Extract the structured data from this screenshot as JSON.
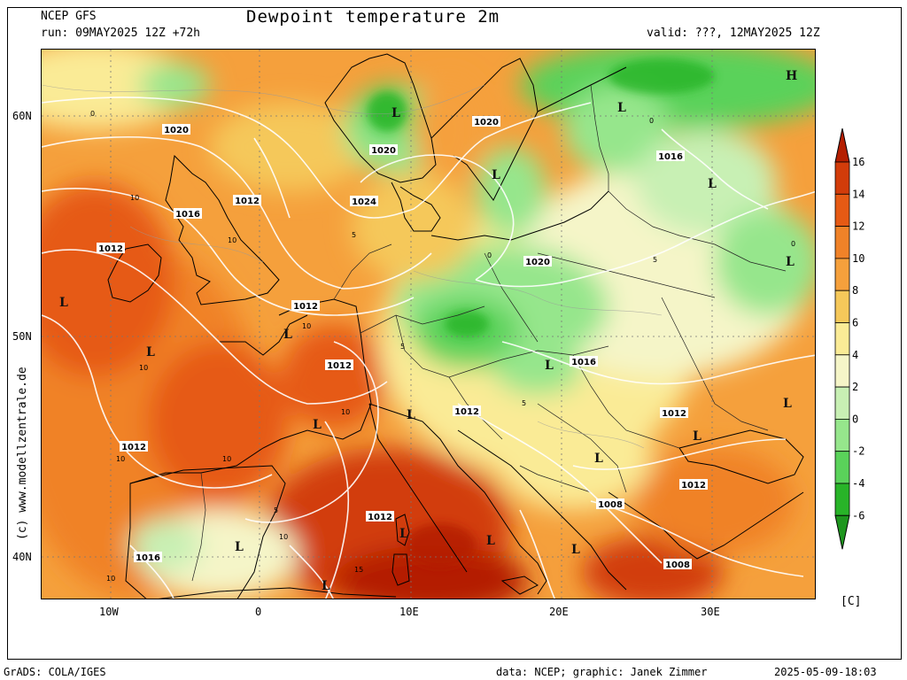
{
  "header": {
    "model": "NCEP GFS",
    "run": "run: 09MAY2025 12Z +72h",
    "title": "Dewpoint temperature 2m",
    "valid": "valid: ???, 12MAY2025 12Z"
  },
  "axes": {
    "lon_ticks": [
      "10W",
      "0",
      "10E",
      "20E",
      "30E"
    ],
    "lat_ticks": [
      "60N",
      "50N",
      "40N"
    ]
  },
  "credit": "(c) www.modellzentrale.de",
  "colorbar": {
    "unit": "[C]",
    "labels": [
      "16",
      "14",
      "12",
      "10",
      "8",
      "6",
      "4",
      "2",
      "0",
      "-2",
      "-4",
      "-6"
    ],
    "colors": [
      "#b41e00",
      "#d23c0a",
      "#e65a14",
      "#f08228",
      "#f5a03c",
      "#f5c85a",
      "#faeb96",
      "#f5f5c8",
      "#c8f0b4",
      "#96e68c",
      "#5ad25a",
      "#28b428",
      "#1e961e"
    ]
  },
  "isobars": [
    "1020",
    "1016",
    "1012",
    "1024",
    "1020",
    "1020",
    "1016",
    "1020",
    "1012",
    "1012",
    "1012",
    "1016",
    "1012",
    "1012",
    "1008",
    "1012",
    "1016",
    "1008",
    "1012",
    "1012"
  ],
  "minor_labels": [
    "10",
    "10",
    "10",
    "10",
    "10",
    "10",
    "10",
    "5",
    "5",
    "5",
    "5",
    "5",
    "0",
    "0",
    "0",
    "0",
    "15",
    "10",
    "10"
  ],
  "pressure_centers": [
    "L",
    "L",
    "L",
    "L",
    "L",
    "L",
    "L",
    "L",
    "L",
    "L",
    "L",
    "L",
    "L",
    "L",
    "L",
    "L",
    "L",
    "L",
    "L",
    "H"
  ],
  "footer": {
    "left": "GrADS: COLA/IGES",
    "center": "data: NCEP; graphic: Janek Zimmer",
    "right": "2025-05-09-18:03"
  }
}
